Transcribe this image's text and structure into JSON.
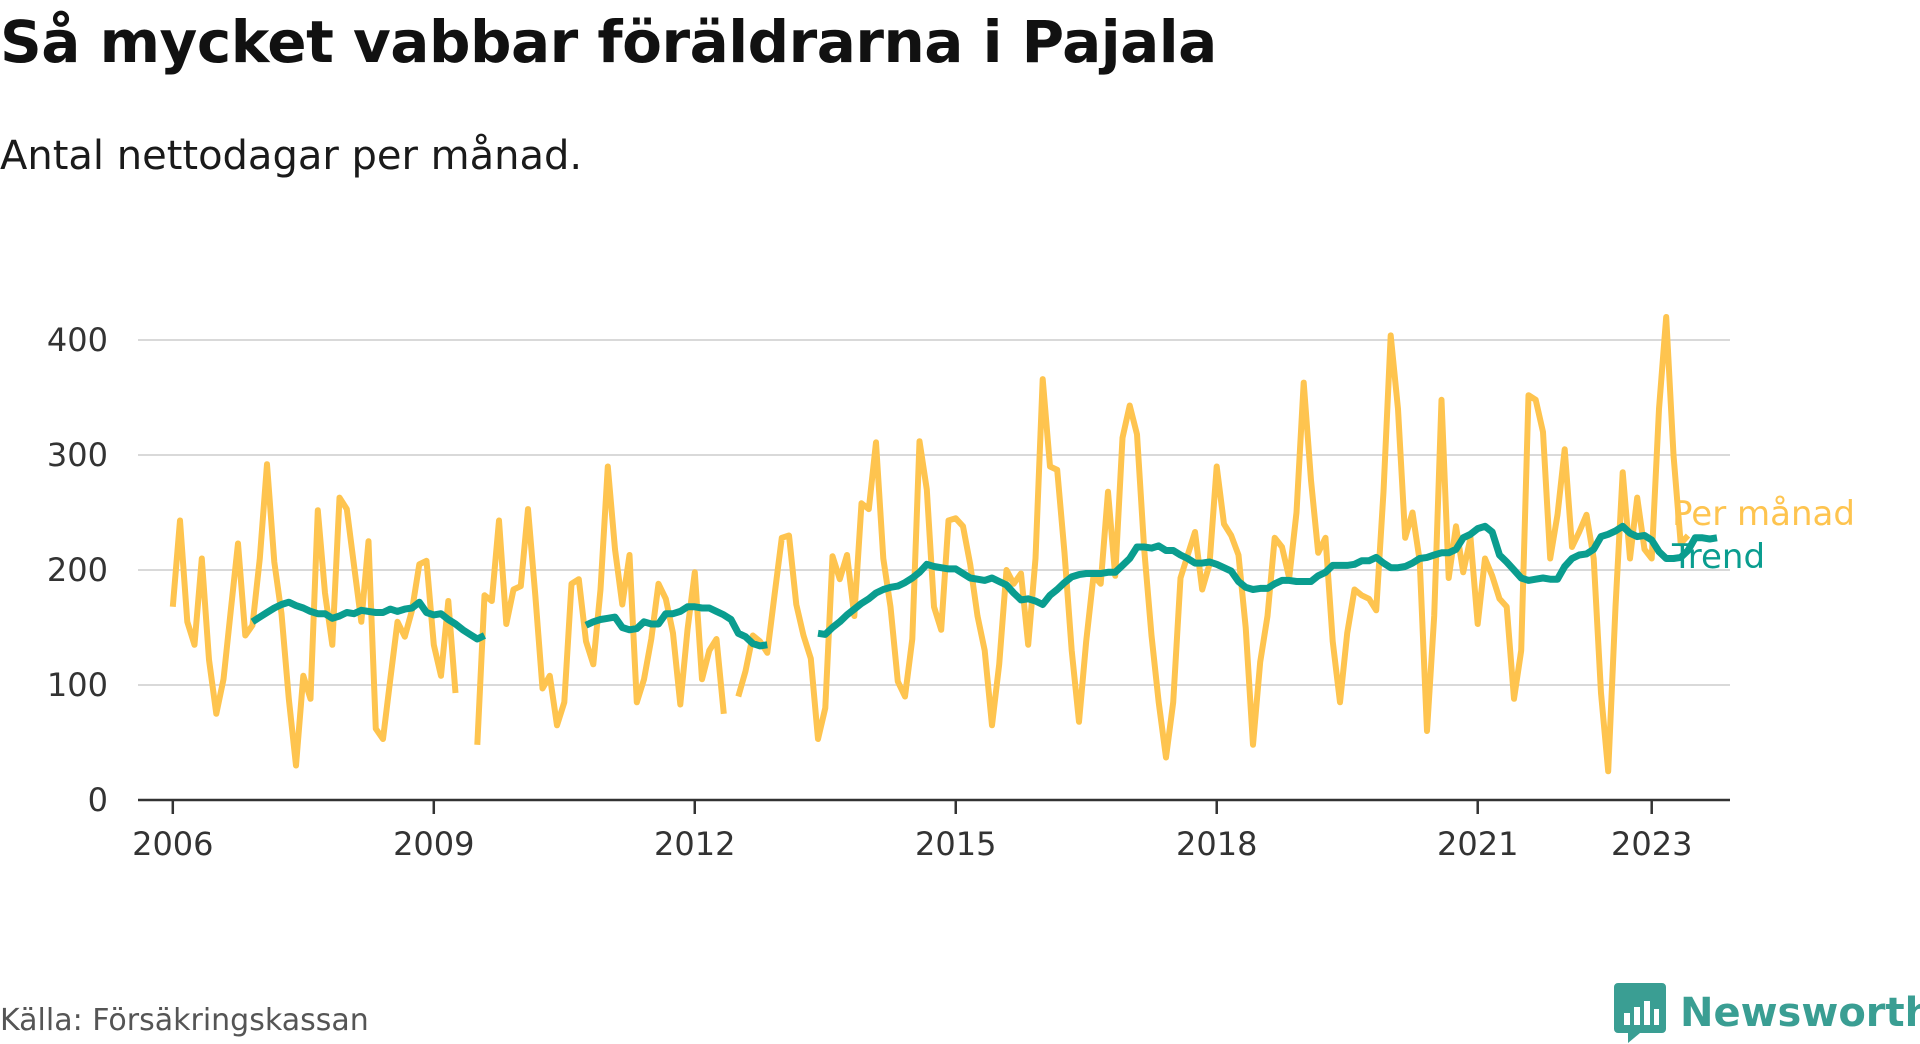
{
  "header": {
    "title": "Så mycket vabbar föräldrarna i Pajala",
    "subtitle": "Antal nettodagar per månad."
  },
  "footer": {
    "source": "Källa: Försäkringskassan",
    "brand_name": "Newsworthy",
    "brand_color": "#3a9e93"
  },
  "chart_data": {
    "type": "line",
    "title": "Så mycket vabbar föräldrarna i Pajala",
    "subtitle": "Antal nettodagar per månad.",
    "xlim": [
      2005.6,
      2023.9
    ],
    "ylim": [
      0,
      400
    ],
    "y_ticks": [
      0,
      100,
      200,
      300,
      400
    ],
    "x_ticks": [
      {
        "value": 2006,
        "label": "2006"
      },
      {
        "value": 2009,
        "label": "2009"
      },
      {
        "value": 2012,
        "label": "2012"
      },
      {
        "value": 2015,
        "label": "2015"
      },
      {
        "value": 2018,
        "label": "2018"
      },
      {
        "value": 2021,
        "label": "2021"
      },
      {
        "value": 2023,
        "label": "2023"
      }
    ],
    "grid": true,
    "legend": "right",
    "series": [
      {
        "name": "Per månad",
        "color": "#fec44f",
        "segments": [
          {
            "start": "2006-01",
            "values": [
              168,
              243,
              155,
              135,
              210,
              122,
              75,
              105,
              165,
              223,
              143,
              152,
              210,
              292,
              207,
              162,
              88,
              30,
              108,
              88,
              252,
              180,
              135,
              263,
              253,
              204,
              155,
              225,
              62,
              53,
              105,
              155,
              142,
              165,
              205,
              208,
              135,
              108,
              173,
              93
            ]
          },
          {
            "start": "2009-07",
            "values": [
              48,
              178,
              173,
              243,
              153,
              183,
              186,
              253,
              178,
              97,
              108,
              65,
              85,
              188,
              192,
              138,
              118,
              183,
              290,
              218,
              170,
              213,
              85,
              105,
              140,
              188,
              175,
              145,
              83,
              148,
              198,
              105,
              130,
              140,
              75
            ]
          },
          {
            "start": "2012-07",
            "values": [
              90,
              112,
              143,
              138,
              128,
              178,
              228,
              230,
              170,
              143,
              123,
              53,
              80,
              212,
              192,
              213,
              160,
              258,
              253,
              311,
              210,
              168,
              103,
              90,
              140,
              312,
              270,
              168,
              148,
              243,
              245,
              238,
              205,
              160,
              130,
              65,
              118,
              200,
              188,
              197,
              135,
              210,
              366,
              290,
              287,
              215,
              130,
              68,
              138,
              195,
              188,
              268,
              195,
              315,
              343,
              318,
              218,
              143,
              85,
              37,
              85,
              193,
              213,
              233,
              183,
              205,
              290,
              240,
              230,
              213,
              150,
              48,
              120,
              160,
              228,
              220,
              193,
              250,
              363,
              278,
              215,
              228,
              138,
              85,
              145,
              183,
              178,
              175,
              165,
              268,
              404,
              340,
              228,
              250,
              208,
              60,
              160,
              348,
              193,
              238,
              198,
              228,
              153,
              210,
              195,
              175,
              168,
              88,
              130,
              352,
              348,
              320,
              210,
              248,
              305,
              220,
              233,
              248,
              210,
              93,
              25,
              168,
              285,
              210,
              263,
              218,
              210,
              340,
              420,
              300,
              223,
              230
            ]
          }
        ]
      },
      {
        "name": "Trend",
        "color": "#0a9d8f",
        "segments": [
          {
            "start": "2006-12",
            "values": [
              155,
              159,
              163,
              167,
              170,
              172,
              169,
              167,
              164,
              162,
              162,
              158,
              160,
              163,
              162,
              165,
              164,
              163,
              163,
              166,
              164,
              166,
              167,
              172,
              163,
              161,
              162,
              157,
              153,
              148,
              144,
              140,
              143
            ]
          },
          {
            "start": "2010-10",
            "values": [
              152,
              155,
              157,
              158,
              159,
              150,
              148,
              149,
              155,
              153,
              153,
              162,
              162,
              164,
              168,
              168,
              167,
              167,
              164,
              161,
              157,
              145,
              142,
              136,
              134,
              135
            ]
          },
          {
            "start": "2013-06",
            "values": [
              145,
              144,
              150,
              155,
              161,
              166,
              171,
              175,
              180,
              183,
              185,
              186,
              189,
              193,
              198,
              205,
              203,
              202,
              201,
              201,
              197,
              193,
              192,
              191,
              193,
              190,
              187,
              180,
              174,
              175,
              173,
              170,
              178,
              183,
              189,
              194,
              196,
              197,
              197,
              197,
              198,
              198,
              204,
              210,
              220,
              220,
              219,
              221,
              217,
              217,
              213,
              210,
              206,
              206,
              207,
              205,
              202,
              199,
              190,
              185,
              183,
              184,
              184,
              188,
              191,
              191,
              190,
              190,
              190,
              195,
              198,
              204,
              204,
              204,
              205,
              208,
              208,
              211,
              206,
              202,
              202,
              203,
              206,
              210,
              211,
              213,
              215,
              215,
              218,
              228,
              231,
              236,
              238,
              233,
              213,
              207,
              200,
              193,
              191,
              192,
              193,
              192,
              192,
              203,
              210,
              213,
              214,
              218,
              229,
              231,
              234,
              238,
              232,
              229,
              230,
              226,
              216,
              210,
              210,
              211,
              217,
              228,
              228,
              227,
              228
            ]
          }
        ]
      }
    ]
  }
}
